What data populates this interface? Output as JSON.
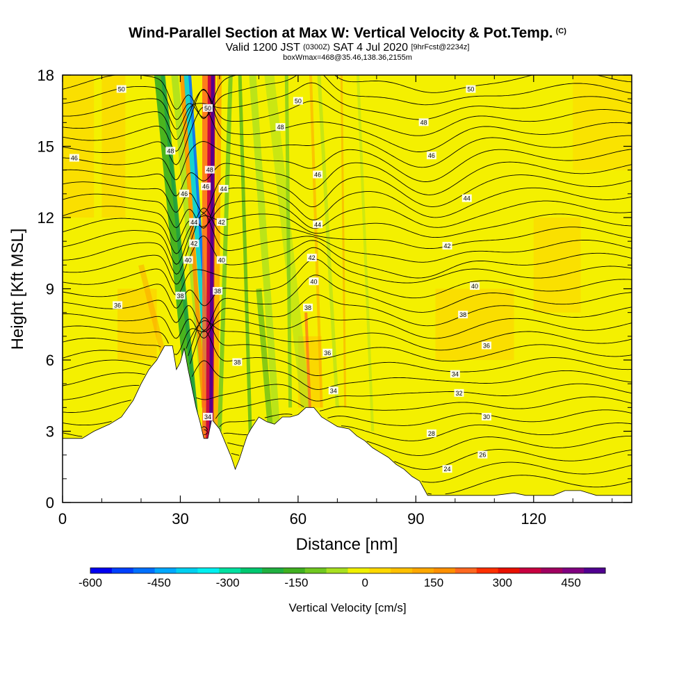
{
  "title": {
    "main": "Wind-Parallel Section at Max W: Vertical Velocity & Pot.Temp.",
    "copyright": "(C)",
    "valid_prefix": "Valid 1200 JST",
    "valid_utc": "(0300Z)",
    "valid_date": "SAT 4 Jul 2020",
    "forecast": "[9hrFcst@2234z]",
    "box_info": "boxWmax=468@35.46,138.36,2155m"
  },
  "chart_data": {
    "type": "heatmap",
    "xlabel": "Distance [nm]",
    "ylabel": "Height [Kft MSL]",
    "xlim": [
      0,
      145
    ],
    "ylim": [
      0,
      18
    ],
    "x_ticks": [
      "0",
      "30",
      "60",
      "90",
      "120"
    ],
    "y_ticks": [
      "0",
      "3",
      "6",
      "9",
      "12",
      "15",
      "18"
    ],
    "colorbar": {
      "title": "Vertical Velocity [cm/s]",
      "tick_labels": [
        "-600",
        "-450",
        "-300",
        "-150",
        "0",
        "150",
        "300",
        "450"
      ],
      "range": [
        -600,
        525
      ],
      "colors": [
        "#0000f0",
        "#0040ff",
        "#0070ff",
        "#00a8ff",
        "#00d0f0",
        "#00f0f0",
        "#00e0a0",
        "#00c870",
        "#20b040",
        "#40b020",
        "#70c820",
        "#a8e020",
        "#f0f000",
        "#ffd800",
        "#ffc000",
        "#ffa800",
        "#ff9000",
        "#ff6820",
        "#ff3000",
        "#e81000",
        "#c80040",
        "#a00060",
        "#800080",
        "#500090"
      ]
    },
    "terrain_kft": [
      [
        0,
        2.7
      ],
      [
        5,
        2.7
      ],
      [
        8,
        3.0
      ],
      [
        12,
        3.3
      ],
      [
        15,
        3.6
      ],
      [
        18,
        4.3
      ],
      [
        20,
        5.0
      ],
      [
        22,
        5.6
      ],
      [
        24,
        6.0
      ],
      [
        26,
        6.6
      ],
      [
        28,
        6.6
      ],
      [
        29,
        5.6
      ],
      [
        30,
        5.9
      ],
      [
        31,
        6.5
      ],
      [
        32,
        5.6
      ],
      [
        33,
        4.8
      ],
      [
        34,
        4.0
      ],
      [
        35,
        3.4
      ],
      [
        36,
        2.7
      ],
      [
        37,
        2.7
      ],
      [
        38,
        3.5
      ],
      [
        40,
        3.1
      ],
      [
        42,
        2.3
      ],
      [
        43,
        1.9
      ],
      [
        44,
        1.4
      ],
      [
        45,
        1.8
      ],
      [
        46,
        2.3
      ],
      [
        47,
        2.8
      ],
      [
        48,
        3.1
      ],
      [
        50,
        3.6
      ],
      [
        52,
        3.4
      ],
      [
        54,
        3.3
      ],
      [
        56,
        3.6
      ],
      [
        58,
        3.6
      ],
      [
        60,
        3.7
      ],
      [
        62,
        4.0
      ],
      [
        64,
        4.0
      ],
      [
        66,
        3.6
      ],
      [
        68,
        3.4
      ],
      [
        70,
        3.2
      ],
      [
        73,
        3.1
      ],
      [
        75,
        2.8
      ],
      [
        77,
        2.6
      ],
      [
        79,
        2.3
      ],
      [
        81,
        2.1
      ],
      [
        83,
        1.9
      ],
      [
        85,
        1.6
      ],
      [
        87,
        1.4
      ],
      [
        89,
        1.1
      ],
      [
        91,
        0.9
      ],
      [
        92,
        0.6
      ],
      [
        93,
        0.3
      ],
      [
        110,
        0.3
      ],
      [
        115,
        0.4
      ],
      [
        118,
        0.3
      ],
      [
        125,
        0.3
      ],
      [
        128,
        0.5
      ],
      [
        132,
        0.5
      ],
      [
        136,
        0.3
      ],
      [
        145,
        0.3
      ]
    ],
    "theta_contours_K": [
      24,
      26,
      28,
      30,
      32,
      34,
      36,
      38,
      40,
      42,
      44,
      46,
      48,
      50
    ],
    "contour_labels": [
      {
        "text": "50",
        "x": 15,
        "y": 17.4
      },
      {
        "text": "46",
        "x": 3,
        "y": 14.5
      },
      {
        "text": "36",
        "x": 14,
        "y": 8.3
      },
      {
        "text": "48",
        "x": 27.5,
        "y": 14.8
      },
      {
        "text": "46",
        "x": 31,
        "y": 13.0
      },
      {
        "text": "44",
        "x": 33.5,
        "y": 11.8
      },
      {
        "text": "42",
        "x": 33.5,
        "y": 10.9
      },
      {
        "text": "40",
        "x": 32,
        "y": 10.2
      },
      {
        "text": "38",
        "x": 30,
        "y": 8.7
      },
      {
        "text": "50",
        "x": 37,
        "y": 16.6
      },
      {
        "text": "48",
        "x": 37.5,
        "y": 14.0
      },
      {
        "text": "46",
        "x": 36.5,
        "y": 13.3
      },
      {
        "text": "44",
        "x": 41,
        "y": 13.2
      },
      {
        "text": "42",
        "x": 40.5,
        "y": 11.8
      },
      {
        "text": "40",
        "x": 40.5,
        "y": 10.2
      },
      {
        "text": "38",
        "x": 39.5,
        "y": 8.9
      },
      {
        "text": "38",
        "x": 44.5,
        "y": 5.9
      },
      {
        "text": "34",
        "x": 37,
        "y": 3.6
      },
      {
        "text": "50",
        "x": 60,
        "y": 16.9
      },
      {
        "text": "48",
        "x": 55.5,
        "y": 15.8
      },
      {
        "text": "46",
        "x": 65,
        "y": 13.8
      },
      {
        "text": "44",
        "x": 65,
        "y": 11.7
      },
      {
        "text": "42",
        "x": 63.5,
        "y": 10.3
      },
      {
        "text": "40",
        "x": 64,
        "y": 9.3
      },
      {
        "text": "38",
        "x": 62.5,
        "y": 8.2
      },
      {
        "text": "36",
        "x": 67.5,
        "y": 6.3
      },
      {
        "text": "34",
        "x": 69,
        "y": 4.7
      },
      {
        "text": "50",
        "x": 104,
        "y": 17.4
      },
      {
        "text": "48",
        "x": 92,
        "y": 16.0
      },
      {
        "text": "46",
        "x": 94,
        "y": 14.6
      },
      {
        "text": "44",
        "x": 103,
        "y": 12.8
      },
      {
        "text": "42",
        "x": 98,
        "y": 10.8
      },
      {
        "text": "40",
        "x": 105,
        "y": 9.1
      },
      {
        "text": "38",
        "x": 102,
        "y": 7.9
      },
      {
        "text": "36",
        "x": 108,
        "y": 6.6
      },
      {
        "text": "34",
        "x": 100,
        "y": 5.4
      },
      {
        "text": "32",
        "x": 101,
        "y": 4.6
      },
      {
        "text": "30",
        "x": 108,
        "y": 3.6
      },
      {
        "text": "28",
        "x": 94,
        "y": 2.9
      },
      {
        "text": "26",
        "x": 107,
        "y": 2.0
      },
      {
        "text": "24",
        "x": 98,
        "y": 1.4
      }
    ]
  }
}
